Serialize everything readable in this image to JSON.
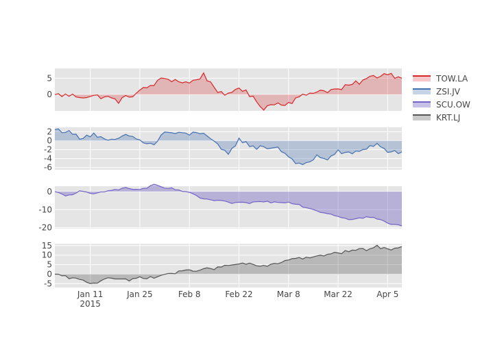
{
  "chart_data": {
    "type": "area",
    "x_start": "2015-01-01",
    "x_end": "2015-04-09",
    "x_tick_labels": [
      {
        "date": "2015-01-11",
        "label": "Jan 11",
        "sublabel": "2015"
      },
      {
        "date": "2015-01-25",
        "label": "Jan 25",
        "sublabel": ""
      },
      {
        "date": "2015-02-08",
        "label": "Feb 8",
        "sublabel": ""
      },
      {
        "date": "2015-02-22",
        "label": "Feb 22",
        "sublabel": ""
      },
      {
        "date": "2015-03-08",
        "label": "Mar 8",
        "sublabel": ""
      },
      {
        "date": "2015-03-22",
        "label": "Mar 22",
        "sublabel": ""
      },
      {
        "date": "2015-04-05",
        "label": "Apr 5",
        "sublabel": ""
      }
    ],
    "grid": true,
    "legend_position": "right",
    "series": [
      {
        "name": "TOW.LA",
        "color": "#d62728",
        "fill": "rgba(214,39,40,0.25)",
        "ylim": [
          -5,
          8
        ],
        "y_ticks": [
          0,
          5
        ],
        "x": [
          "2015-01-01",
          "2015-01-08",
          "2015-01-15",
          "2015-01-19",
          "2015-01-25",
          "2015-02-01",
          "2015-02-08",
          "2015-02-12",
          "2015-02-18",
          "2015-02-22",
          "2015-03-01",
          "2015-03-04",
          "2015-03-08",
          "2015-03-15",
          "2015-03-22",
          "2015-03-26",
          "2015-04-01",
          "2015-04-05",
          "2015-04-09"
        ],
        "values": [
          0,
          -0.5,
          -0.6,
          -2,
          1,
          5,
          3.5,
          6,
          -1,
          2.5,
          -4,
          -2.8,
          -2.5,
          1,
          1.5,
          3,
          5.5,
          6.5,
          5
        ]
      },
      {
        "name": "ZSI.JV",
        "color": "#4470b0",
        "fill": "rgba(68,112,176,0.3)",
        "ylim": [
          -6.5,
          3
        ],
        "y_ticks": [
          -6,
          -4,
          -2,
          0,
          2
        ],
        "x": [
          "2015-01-01",
          "2015-01-04",
          "2015-01-08",
          "2015-01-12",
          "2015-01-16",
          "2015-01-19",
          "2015-01-22",
          "2015-01-25",
          "2015-01-29",
          "2015-02-01",
          "2015-02-05",
          "2015-02-08",
          "2015-02-12",
          "2015-02-15",
          "2015-02-19",
          "2015-02-22",
          "2015-02-26",
          "2015-03-01",
          "2015-03-05",
          "2015-03-08",
          "2015-03-12",
          "2015-03-16",
          "2015-03-19",
          "2015-03-22",
          "2015-03-26",
          "2015-03-30",
          "2015-04-02",
          "2015-04-05",
          "2015-04-09"
        ],
        "values": [
          2.5,
          2.2,
          0.8,
          1.5,
          -0.3,
          0.5,
          1.2,
          0,
          -1,
          2,
          1.5,
          1.5,
          2,
          -0.5,
          -3.3,
          0.5,
          -1.5,
          -1.5,
          -1.5,
          -3.5,
          -5.8,
          -3.5,
          -4,
          -2.5,
          -3,
          -1.5,
          -0.8,
          -2.5,
          -2.5
        ]
      },
      {
        "name": "SCU.OW",
        "color": "#7463c6",
        "fill": "rgba(116,99,198,0.4)",
        "ylim": [
          -20.5,
          3
        ],
        "y_ticks": [
          -20,
          -10,
          0
        ],
        "x": [
          "2015-01-01",
          "2015-01-04",
          "2015-01-08",
          "2015-01-12",
          "2015-01-16",
          "2015-01-19",
          "2015-01-22",
          "2015-01-25",
          "2015-01-29",
          "2015-02-01",
          "2015-02-05",
          "2015-02-08",
          "2015-02-12",
          "2015-02-15",
          "2015-02-19",
          "2015-02-22",
          "2015-02-26",
          "2015-03-01",
          "2015-03-05",
          "2015-03-08",
          "2015-03-12",
          "2015-03-16",
          "2015-03-19",
          "2015-03-22",
          "2015-03-26",
          "2015-03-30",
          "2015-04-02",
          "2015-04-05",
          "2015-04-09"
        ],
        "values": [
          0,
          -2.5,
          0,
          -1.5,
          1,
          1.5,
          1.8,
          1,
          3.5,
          2,
          1,
          -1,
          -4,
          -5,
          -6,
          -6.5,
          -6,
          -5.5,
          -6,
          -5.5,
          -8,
          -10.5,
          -12,
          -13.5,
          -15.5,
          -14,
          -15,
          -17.5,
          -19
        ]
      },
      {
        "name": "KRT.LJ",
        "color": "#555555",
        "fill": "rgba(80,80,80,0.3)",
        "ylim": [
          -7,
          16
        ],
        "y_ticks": [
          -5,
          0,
          5,
          10,
          15
        ],
        "x": [
          "2015-01-01",
          "2015-01-04",
          "2015-01-08",
          "2015-01-12",
          "2015-01-16",
          "2015-01-19",
          "2015-01-22",
          "2015-01-25",
          "2015-01-29",
          "2015-02-01",
          "2015-02-05",
          "2015-02-08",
          "2015-02-12",
          "2015-02-15",
          "2015-02-19",
          "2015-02-22",
          "2015-02-26",
          "2015-03-01",
          "2015-03-05",
          "2015-03-08",
          "2015-03-12",
          "2015-03-16",
          "2015-03-19",
          "2015-03-22",
          "2015-03-26",
          "2015-03-30",
          "2015-04-02",
          "2015-04-05",
          "2015-04-09"
        ],
        "values": [
          0,
          -1.5,
          -3,
          -5,
          -1.5,
          -2.5,
          -3.5,
          -1.5,
          -2,
          0,
          1,
          2,
          2.5,
          3,
          4.5,
          5.5,
          5,
          4,
          5.5,
          8,
          8.5,
          9,
          10.5,
          11,
          12.5,
          13,
          14.5,
          13,
          14.5
        ]
      }
    ]
  }
}
